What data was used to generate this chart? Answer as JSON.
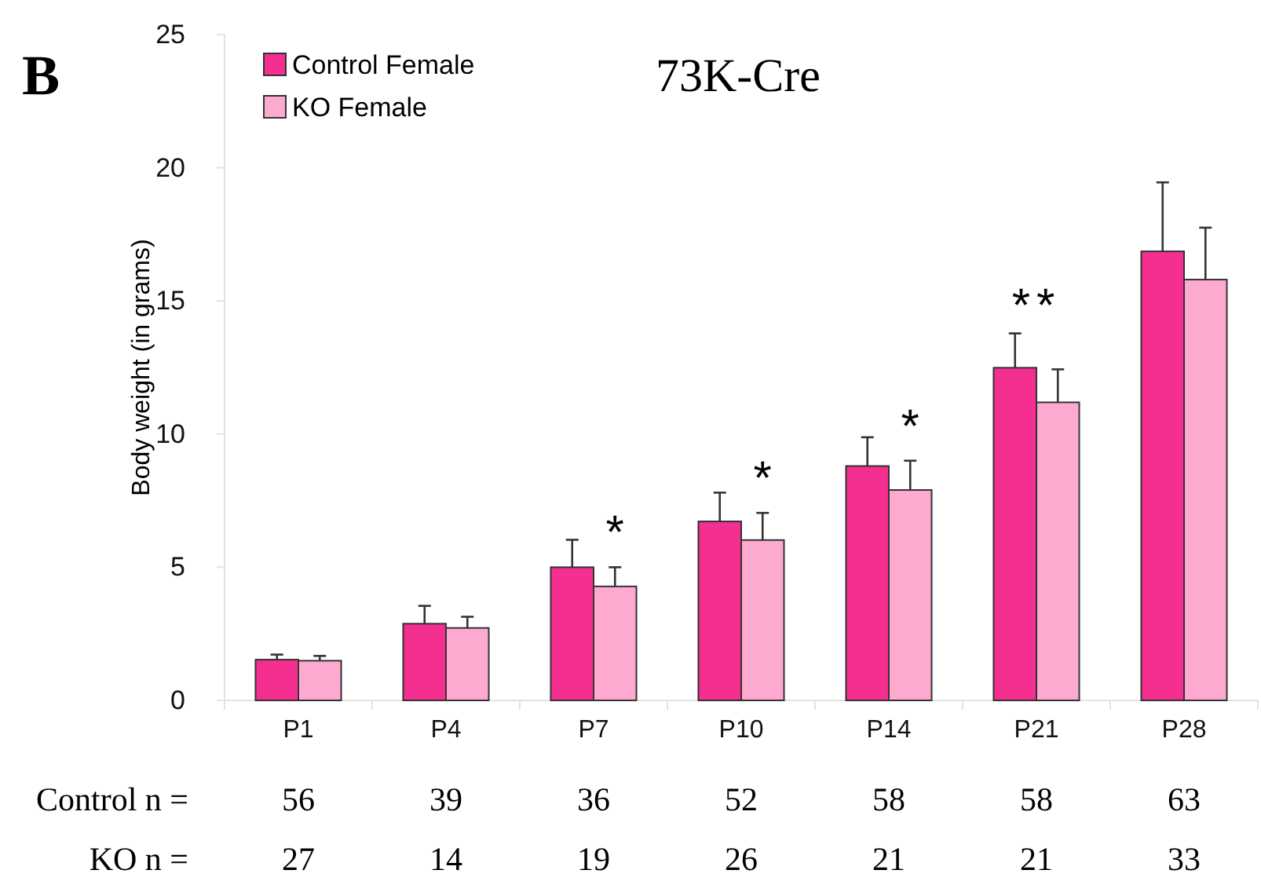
{
  "chart_data": {
    "type": "bar",
    "title": "73K-Cre",
    "ylabel": "Body weight (in grams)",
    "categories": [
      "P1",
      "P4",
      "P7",
      "P10",
      "P14",
      "P21",
      "P28"
    ],
    "series": [
      {
        "name": "Control Female",
        "color": "#f42f8f",
        "values": [
          1.53,
          2.88,
          5.0,
          6.72,
          8.8,
          12.49,
          16.86
        ],
        "errors": [
          [
            1.53,
            1.72
          ],
          [
            2.88,
            3.55
          ],
          [
            5.0,
            6.03
          ],
          [
            6.72,
            7.8
          ],
          [
            8.8,
            9.88
          ],
          [
            12.49,
            13.78
          ],
          [
            16.86,
            19.45
          ]
        ]
      },
      {
        "name": "KO Female",
        "color": "#fda9d0",
        "values": [
          1.49,
          2.72,
          4.28,
          6.02,
          7.9,
          11.19,
          15.8
        ],
        "errors": [
          [
            1.49,
            1.67
          ],
          [
            2.72,
            3.14
          ],
          [
            4.28,
            5.0
          ],
          [
            6.02,
            7.04
          ],
          [
            7.9,
            9.0
          ],
          [
            11.19,
            12.43
          ],
          [
            15.8,
            17.75
          ]
        ]
      }
    ],
    "ylim": [
      0,
      25
    ],
    "yticks": [
      0,
      5,
      10,
      15,
      20,
      25
    ],
    "legend": "top left",
    "annotations": [
      "B",
      "*",
      "*",
      "*",
      "**",
      "Control n =",
      "56",
      "39",
      "36",
      "52",
      "58",
      "58",
      "63",
      "KO n =",
      "27",
      "14",
      "19",
      "26",
      "21",
      "21",
      "33"
    ]
  }
}
